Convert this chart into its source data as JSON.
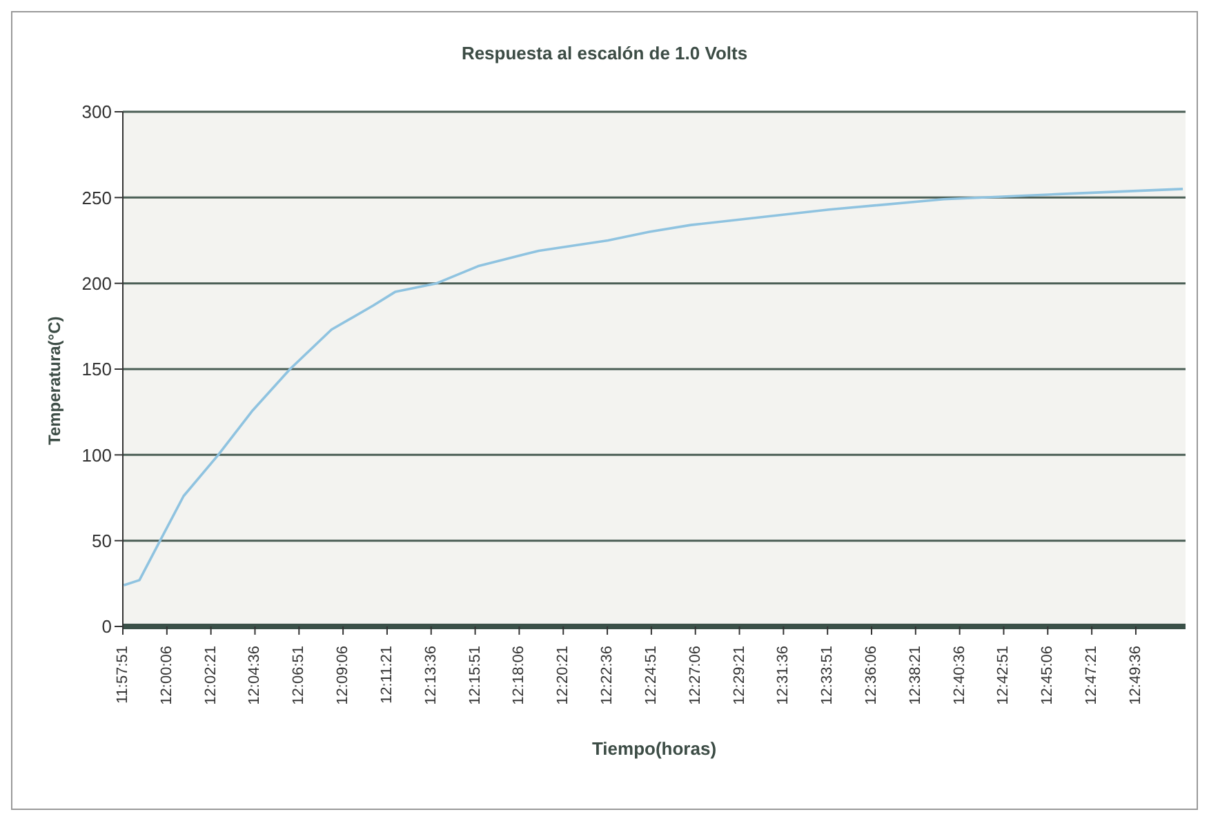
{
  "chart_data": {
    "type": "line",
    "title": "Respuesta al escalón de 1.0 Volts",
    "xlabel": "Tiempo(horas)",
    "ylabel": "Temperatura(°C)",
    "x": [
      11.965,
      11.9783,
      11.9959,
      12.0159,
      12.0454,
      12.0748,
      12.1065,
      12.1418,
      12.1772,
      12.196,
      12.2313,
      12.2666,
      12.3184,
      12.3772,
      12.4125,
      12.4478,
      12.5655,
      12.6631,
      12.7608,
      12.8667
    ],
    "series": [
      {
        "color": "#8fc3e0",
        "values": [
          24,
          27,
          50,
          76,
          100,
          126,
          150,
          173,
          187,
          195,
          200,
          210,
          219,
          225,
          230,
          234,
          243,
          249,
          252,
          255
        ]
      }
    ],
    "xlim": [
      11.964167,
      12.869
    ],
    "xticks": [
      {
        "value": 11.964167,
        "label": "11:57:51"
      },
      {
        "value": 12.001667,
        "label": "12:00:06"
      },
      {
        "value": 12.039167,
        "label": "12:02:21"
      },
      {
        "value": 12.076667,
        "label": "12:04:36"
      },
      {
        "value": 12.114167,
        "label": "12:06:51"
      },
      {
        "value": 12.151667,
        "label": "12:09:06"
      },
      {
        "value": 12.189167,
        "label": "12:11:21"
      },
      {
        "value": 12.226667,
        "label": "12:13:36"
      },
      {
        "value": 12.264167,
        "label": "12:15:51"
      },
      {
        "value": 12.301667,
        "label": "12:18:06"
      },
      {
        "value": 12.339167,
        "label": "12:20:21"
      },
      {
        "value": 12.376667,
        "label": "12:22:36"
      },
      {
        "value": 12.414167,
        "label": "12:24:51"
      },
      {
        "value": 12.451667,
        "label": "12:27:06"
      },
      {
        "value": 12.489167,
        "label": "12:29:21"
      },
      {
        "value": 12.526667,
        "label": "12:31:36"
      },
      {
        "value": 12.564167,
        "label": "12:33:51"
      },
      {
        "value": 12.601667,
        "label": "12:36:06"
      },
      {
        "value": 12.639167,
        "label": "12:38:21"
      },
      {
        "value": 12.676667,
        "label": "12:40:36"
      },
      {
        "value": 12.714167,
        "label": "12:42:51"
      },
      {
        "value": 12.751667,
        "label": "12:45:06"
      },
      {
        "value": 12.789167,
        "label": "12:47:21"
      },
      {
        "value": 12.826667,
        "label": "12:49:36"
      }
    ],
    "ylim": [
      0,
      300
    ],
    "yticks": [
      0,
      50,
      100,
      150,
      200,
      250,
      300
    ],
    "grid": "y",
    "legend": false,
    "marker": "none",
    "line_style": "solid"
  }
}
